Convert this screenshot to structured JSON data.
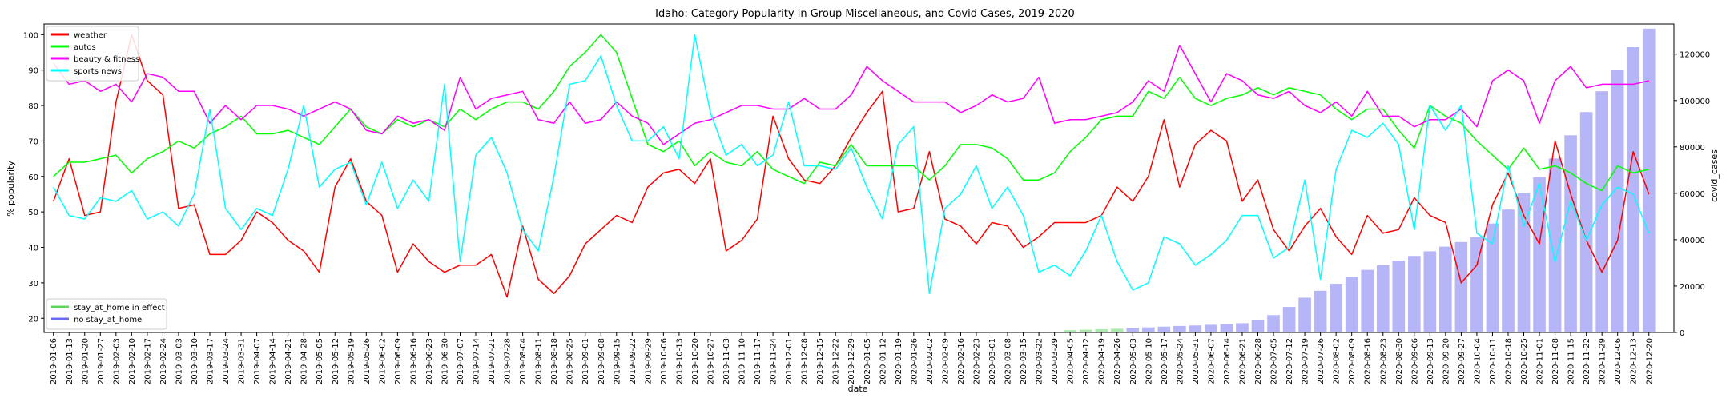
{
  "chart_data": {
    "type": "line",
    "title": "Idaho: Category Popularity in Group Miscellaneous, and Covid Cases, 2019-2020",
    "xlabel": "date",
    "ylabel": "% popularity",
    "y2label": "covid_cases",
    "ylim": [
      16,
      103
    ],
    "y2lim": [
      0,
      133000
    ],
    "yticks": [
      20,
      30,
      40,
      50,
      60,
      70,
      80,
      90,
      100
    ],
    "y2ticks": [
      0,
      20000,
      40000,
      60000,
      80000,
      100000,
      120000
    ],
    "legend_top": [
      {
        "name": "weather",
        "color": "#ff0000"
      },
      {
        "name": "autos",
        "color": "#00ff00"
      },
      {
        "name": "beauty & fitness",
        "color": "#ff00ff"
      },
      {
        "name": "sports news",
        "color": "#00ffff"
      }
    ],
    "legend_bottom": [
      {
        "name": "stay_at_home in effect",
        "color": "#5cd65c"
      },
      {
        "name": "no stay_at_home",
        "color": "#6b6bf0"
      }
    ],
    "x": [
      "2019-01-06",
      "2019-01-13",
      "2019-01-20",
      "2019-01-27",
      "2019-02-03",
      "2019-02-10",
      "2019-02-17",
      "2019-02-24",
      "2019-03-03",
      "2019-03-10",
      "2019-03-17",
      "2019-03-24",
      "2019-03-31",
      "2019-04-07",
      "2019-04-14",
      "2019-04-21",
      "2019-04-28",
      "2019-05-05",
      "2019-05-12",
      "2019-05-19",
      "2019-05-26",
      "2019-06-02",
      "2019-06-09",
      "2019-06-16",
      "2019-06-23",
      "2019-06-30",
      "2019-07-07",
      "2019-07-14",
      "2019-07-21",
      "2019-07-28",
      "2019-08-04",
      "2019-08-11",
      "2019-08-18",
      "2019-08-25",
      "2019-09-01",
      "2019-09-08",
      "2019-09-15",
      "2019-09-22",
      "2019-09-29",
      "2019-10-06",
      "2019-10-13",
      "2019-10-20",
      "2019-10-27",
      "2019-11-03",
      "2019-11-10",
      "2019-11-17",
      "2019-11-24",
      "2019-12-01",
      "2019-12-08",
      "2019-12-15",
      "2019-12-22",
      "2019-12-29",
      "2020-01-05",
      "2020-01-12",
      "2020-01-19",
      "2020-01-26",
      "2020-02-02",
      "2020-02-09",
      "2020-02-16",
      "2020-02-23",
      "2020-03-01",
      "2020-03-08",
      "2020-03-15",
      "2020-03-22",
      "2020-03-29",
      "2020-04-05",
      "2020-04-12",
      "2020-04-19",
      "2020-04-26",
      "2020-05-03",
      "2020-05-10",
      "2020-05-17",
      "2020-05-24",
      "2020-05-31",
      "2020-06-07",
      "2020-06-14",
      "2020-06-21",
      "2020-06-28",
      "2020-07-05",
      "2020-07-12",
      "2020-07-19",
      "2020-07-26",
      "2020-08-02",
      "2020-08-09",
      "2020-08-16",
      "2020-08-23",
      "2020-08-30",
      "2020-09-06",
      "2020-09-13",
      "2020-09-20",
      "2020-09-27",
      "2020-10-04",
      "2020-10-11",
      "2020-10-18",
      "2020-10-25",
      "2020-11-01",
      "2020-11-08",
      "2020-11-15",
      "2020-11-22",
      "2020-11-29",
      "2020-12-06",
      "2020-12-13",
      "2020-12-20"
    ],
    "series": [
      {
        "name": "weather",
        "color": "#ff0000",
        "values": [
          53,
          65,
          49,
          50,
          81,
          100,
          87,
          83,
          51,
          52,
          38,
          38,
          42,
          50,
          47,
          42,
          39,
          33,
          57,
          65,
          53,
          49,
          33,
          41,
          36,
          33,
          35,
          35,
          38,
          26,
          46,
          31,
          27,
          32,
          41,
          45,
          49,
          47,
          57,
          61,
          62,
          58,
          65,
          39,
          42,
          48,
          77,
          65,
          59,
          58,
          63,
          71,
          78,
          84,
          50,
          51,
          67,
          48,
          46,
          41,
          47,
          46,
          40,
          43,
          47,
          47,
          47,
          49,
          57,
          53,
          60,
          76,
          57,
          69,
          73,
          70,
          53,
          59,
          45,
          39,
          46,
          51,
          43,
          38,
          49,
          44,
          45,
          54,
          49,
          47,
          30,
          35,
          52,
          61,
          49,
          41,
          70,
          55,
          42,
          33,
          42,
          67,
          55
        ]
      },
      {
        "name": "autos",
        "color": "#00ff00",
        "values": [
          60,
          64,
          64,
          65,
          66,
          61,
          65,
          67,
          70,
          68,
          72,
          74,
          77,
          72,
          72,
          73,
          71,
          69,
          74,
          79,
          74,
          72,
          76,
          74,
          76,
          74,
          79,
          76,
          79,
          81,
          81,
          79,
          84,
          91,
          95,
          100,
          95,
          82,
          69,
          67,
          70,
          63,
          67,
          64,
          63,
          67,
          62,
          60,
          58,
          64,
          63,
          69,
          63,
          63,
          63,
          63,
          59,
          63,
          69,
          69,
          68,
          65,
          59,
          59,
          61,
          67,
          71,
          76,
          77,
          77,
          84,
          82,
          88,
          82,
          80,
          82,
          83,
          85,
          83,
          85,
          84,
          83,
          79,
          76,
          79,
          79,
          73,
          68,
          80,
          77,
          75,
          70,
          66,
          62,
          68,
          62,
          63,
          61,
          58,
          56,
          63,
          61,
          62
        ]
      },
      {
        "name": "beauty & fitness",
        "color": "#ff00ff",
        "values": [
          92,
          86,
          87,
          84,
          86,
          81,
          89,
          88,
          84,
          84,
          75,
          80,
          76,
          80,
          80,
          79,
          77,
          79,
          81,
          79,
          73,
          72,
          77,
          75,
          76,
          73,
          88,
          79,
          82,
          83,
          84,
          76,
          75,
          81,
          75,
          76,
          81,
          77,
          75,
          69,
          72,
          75,
          76,
          78,
          80,
          80,
          79,
          79,
          82,
          79,
          79,
          83,
          91,
          87,
          84,
          81,
          81,
          81,
          78,
          80,
          83,
          81,
          82,
          88,
          75,
          76,
          76,
          77,
          78,
          81,
          87,
          84,
          97,
          89,
          81,
          89,
          87,
          83,
          82,
          84,
          80,
          78,
          81,
          77,
          84,
          77,
          77,
          74,
          76,
          76,
          79,
          74,
          87,
          90,
          87,
          75,
          87,
          91,
          85,
          86,
          86,
          86,
          87
        ]
      },
      {
        "name": "sports news",
        "color": "#00ffff",
        "values": [
          57,
          49,
          48,
          54,
          53,
          56,
          48,
          50,
          46,
          55,
          79,
          51,
          45,
          51,
          49,
          62,
          80,
          57,
          62,
          64,
          52,
          64,
          51,
          59,
          53,
          86,
          36,
          66,
          71,
          61,
          45,
          39,
          60,
          86,
          87,
          94,
          80,
          70,
          70,
          74,
          65,
          100,
          78,
          66,
          69,
          63,
          66,
          81,
          63,
          63,
          62,
          68,
          57,
          48,
          69,
          74,
          27,
          51,
          55,
          63,
          51,
          57,
          49,
          33,
          35,
          32,
          39,
          49,
          36,
          28,
          30,
          43,
          41,
          35,
          38,
          42,
          49,
          49,
          37,
          40,
          59,
          31,
          62,
          73,
          71,
          75,
          69,
          45,
          80,
          73,
          80,
          44,
          41,
          63,
          46,
          58,
          36,
          53,
          42,
          52,
          57,
          55,
          44
        ]
      }
    ],
    "covid_cases": [
      0,
      0,
      0,
      0,
      0,
      0,
      0,
      0,
      0,
      0,
      0,
      0,
      0,
      0,
      0,
      0,
      0,
      0,
      0,
      0,
      0,
      0,
      0,
      0,
      0,
      0,
      0,
      0,
      0,
      0,
      0,
      0,
      0,
      0,
      0,
      0,
      0,
      0,
      0,
      0,
      0,
      0,
      0,
      0,
      0,
      0,
      0,
      0,
      0,
      0,
      0,
      0,
      0,
      0,
      0,
      0,
      0,
      0,
      0,
      0,
      0,
      0,
      0,
      0,
      0,
      1000,
      1200,
      1400,
      1600,
      1900,
      2200,
      2500,
      2800,
      3000,
      3300,
      3600,
      4000,
      5500,
      7500,
      11000,
      15000,
      18000,
      21000,
      24000,
      27000,
      29000,
      31000,
      33000,
      35000,
      37000,
      39000,
      41000,
      47000,
      53000,
      60000,
      67000,
      75000,
      85000,
      95000,
      104000,
      113000,
      123000,
      131000
    ],
    "stay_at_home_in_effect": [
      0,
      0,
      0,
      0,
      0,
      0,
      0,
      0,
      0,
      0,
      0,
      0,
      0,
      0,
      0,
      0,
      0,
      0,
      0,
      0,
      0,
      0,
      0,
      0,
      0,
      0,
      0,
      0,
      0,
      0,
      0,
      0,
      0,
      0,
      0,
      0,
      0,
      0,
      0,
      0,
      0,
      0,
      0,
      0,
      0,
      0,
      0,
      0,
      0,
      0,
      0,
      0,
      0,
      0,
      0,
      0,
      0,
      0,
      0,
      0,
      0,
      0,
      0,
      0,
      0,
      1,
      1,
      1,
      1,
      0,
      0,
      0,
      0,
      0,
      0,
      0,
      0,
      0,
      0,
      0,
      0,
      0,
      0,
      0,
      0,
      0,
      0,
      0,
      0,
      0,
      0,
      0,
      0,
      0,
      0,
      0,
      0,
      0,
      0,
      0,
      0,
      0,
      0
    ],
    "grid": false,
    "legend_placement": [
      "upper-left",
      "lower-left"
    ]
  }
}
